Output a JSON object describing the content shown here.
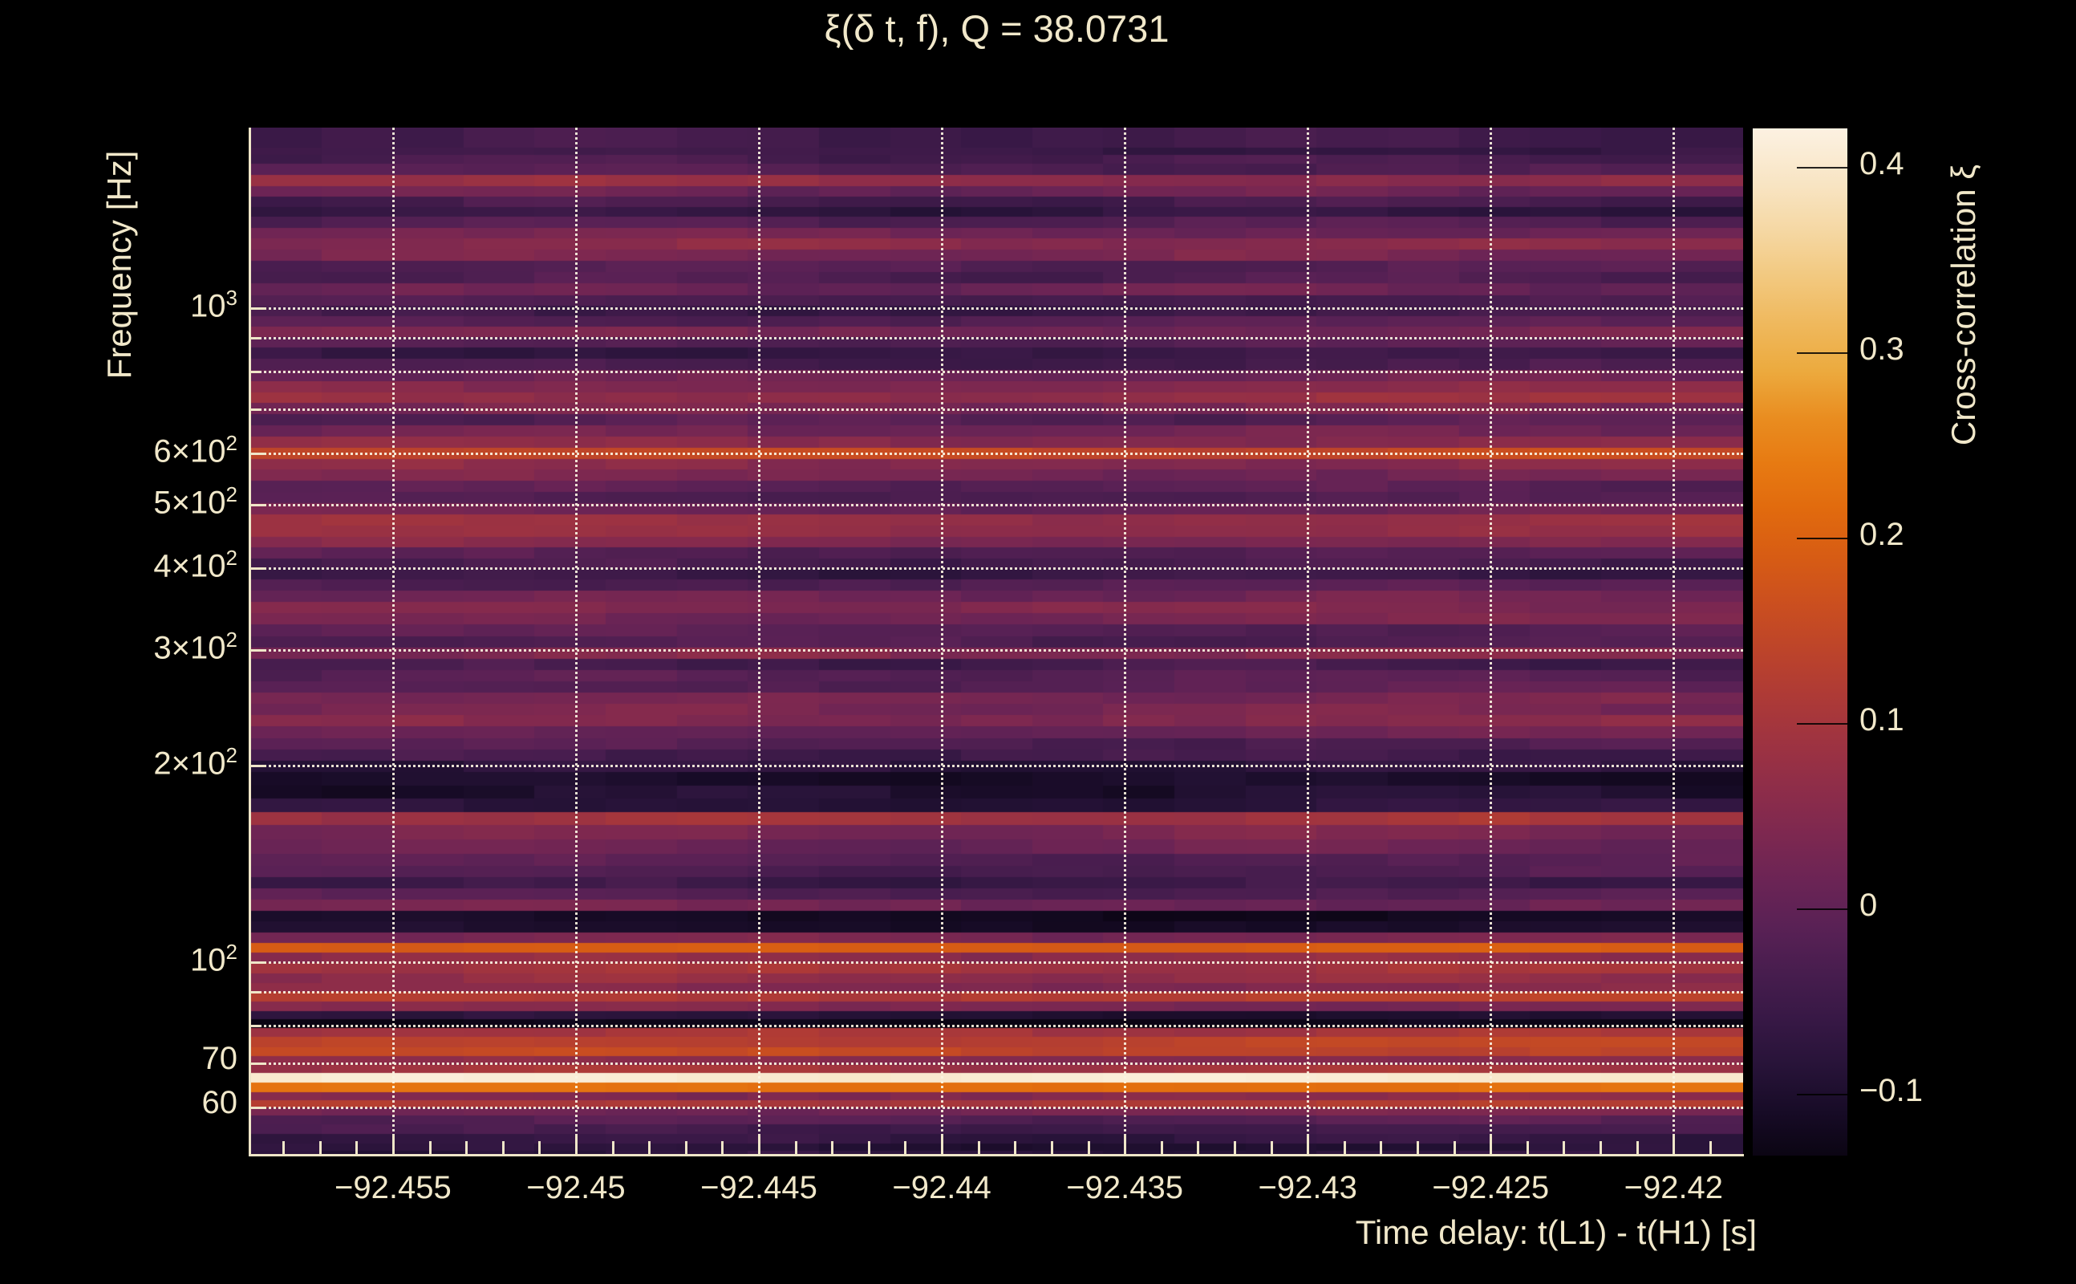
{
  "title": "ξ(δ t, f), Q = 38.0731",
  "colors": {
    "background": "#000000",
    "text": "#f1e8ca",
    "spine": "#efe6c8",
    "grid": "#faf3e1",
    "colorbar_tick": "#000000"
  },
  "chart_data": {
    "type": "heatmap",
    "title": "ξ(δ t, f), Q = 38.0731",
    "xlabel": "Time delay: t(L1) - t(H1) [s]",
    "ylabel": "Frequency [Hz]",
    "colorbar_label": "Cross-correlation ξ",
    "q_value": 38.0731,
    "x_range": [
      -92.4589,
      -92.4181
    ],
    "y_range_hz": [
      50.6,
      1888
    ],
    "y_scale": "log",
    "grid_style": "dotted",
    "x_ticks": {
      "values": [
        -92.455,
        -92.45,
        -92.445,
        -92.44,
        -92.435,
        -92.43,
        -92.425,
        -92.42
      ],
      "labels": [
        "−92.455",
        "−92.45",
        "−92.445",
        "−92.44",
        "−92.435",
        "−92.43",
        "−92.425",
        "−92.42"
      ]
    },
    "x_minor_tick_step": 0.001,
    "y_ticks": {
      "values": [
        1000,
        600,
        500,
        400,
        300,
        200,
        100,
        70,
        60
      ],
      "labels": [
        "10^3",
        "6×10^2",
        "5×10^2",
        "4×10^2",
        "3×10^2",
        "2×10^2",
        "10^2",
        "70",
        "60"
      ]
    },
    "y_gridlines_hz": [
      60,
      70,
      80,
      90,
      100,
      200,
      300,
      400,
      500,
      600,
      700,
      800,
      900,
      1000
    ],
    "colorbar_ticks": {
      "values": [
        0.4,
        0.3,
        0.2,
        0.1,
        0,
        -0.1
      ],
      "labels": [
        "0.4",
        "0.3",
        "0.2",
        "0.1",
        "0",
        "−0.1"
      ]
    },
    "color_range": [
      -0.133,
      0.421
    ],
    "colormap_stops": [
      [
        -0.133,
        "#0b0513"
      ],
      [
        -0.11,
        "#170b26"
      ],
      [
        -0.085,
        "#271338"
      ],
      [
        -0.06,
        "#371845"
      ],
      [
        -0.035,
        "#471d4e"
      ],
      [
        -0.01,
        "#592155"
      ],
      [
        0.015,
        "#6b2455"
      ],
      [
        0.04,
        "#7d2850"
      ],
      [
        0.065,
        "#8e2d49"
      ],
      [
        0.09,
        "#9e3341"
      ],
      [
        0.115,
        "#ae3a36"
      ],
      [
        0.14,
        "#bd442a"
      ],
      [
        0.165,
        "#cb4f1f"
      ],
      [
        0.19,
        "#d75c14"
      ],
      [
        0.215,
        "#e16a0e"
      ],
      [
        0.24,
        "#e77a12"
      ],
      [
        0.265,
        "#e98d20"
      ],
      [
        0.29,
        "#ecaa3e"
      ],
      [
        0.315,
        "#efb85c"
      ],
      [
        0.34,
        "#f2c87e"
      ],
      [
        0.365,
        "#f5d7a2"
      ],
      [
        0.39,
        "#f8e4c2"
      ],
      [
        0.415,
        "#fbefdc"
      ],
      [
        0.421,
        "#fcf1e1"
      ]
    ],
    "time_bins": 21,
    "noise_amplitude": 0.016,
    "rows": [
      [
        51.1,
        -0.075
      ],
      [
        52.3,
        -0.085
      ],
      [
        53.9,
        -0.065
      ],
      [
        55.8,
        -0.04
      ],
      [
        57.7,
        -0.015
      ],
      [
        59.3,
        0.03
      ],
      [
        60.9,
        0.115
      ],
      [
        62.7,
        0.05
      ],
      [
        64.6,
        0.225
      ],
      [
        66.8,
        0.405
      ],
      [
        68.9,
        0.095
      ],
      [
        71.0,
        0.055
      ],
      [
        73.2,
        0.145
      ],
      [
        75.7,
        0.135
      ],
      [
        78.4,
        0.1
      ],
      [
        80.9,
        -0.13
      ],
      [
        83.3,
        -0.09
      ],
      [
        85.9,
        0.04
      ],
      [
        88.9,
        0.125
      ],
      [
        91.9,
        0.05
      ],
      [
        95.1,
        0.07
      ],
      [
        98.4,
        0.095
      ],
      [
        101.8,
        0.065
      ],
      [
        105.6,
        0.19
      ],
      [
        109.4,
        0.035
      ],
      [
        113.4,
        -0.105
      ],
      [
        118.0,
        -0.115
      ],
      [
        122.7,
        0.02
      ],
      [
        127.6,
        -0.02
      ],
      [
        132.7,
        -0.055
      ],
      [
        138.0,
        -0.025
      ],
      [
        143.9,
        -0.012
      ],
      [
        150.9,
        0.012
      ],
      [
        158.5,
        0.035
      ],
      [
        166.3,
        0.095
      ],
      [
        174.4,
        -0.08
      ],
      [
        182.8,
        -0.095
      ],
      [
        191.7,
        -0.105
      ],
      [
        200.2,
        -0.075
      ],
      [
        208.4,
        -0.045
      ],
      [
        216.9,
        -0.02
      ],
      [
        225.8,
        0.01
      ],
      [
        235.0,
        0.05
      ],
      [
        244.5,
        0.035
      ],
      [
        254.5,
        0.03
      ],
      [
        264.8,
        -0.01
      ],
      [
        275.6,
        -0.012
      ],
      [
        286.8,
        -0.04
      ],
      [
        298.5,
        0.045
      ],
      [
        310.7,
        -0.025
      ],
      [
        323.3,
        -0.012
      ],
      [
        336.5,
        0.032
      ],
      [
        350.2,
        0.045
      ],
      [
        364.4,
        0.02
      ],
      [
        379.3,
        -0.02
      ],
      [
        393.5,
        -0.06
      ],
      [
        407.7,
        -0.035
      ],
      [
        423.4,
        -0.015
      ],
      [
        440.2,
        0.045
      ],
      [
        457.8,
        0.075
      ],
      [
        476.0,
        0.08
      ],
      [
        495.0,
        0.015
      ],
      [
        514.8,
        -0.022
      ],
      [
        535.3,
        -0.01
      ],
      [
        556.7,
        0.03
      ],
      [
        578.9,
        0.055
      ],
      [
        602.0,
        0.15
      ],
      [
        626.0,
        0.055
      ],
      [
        651.0,
        0.02
      ],
      [
        677.0,
        -0.015
      ],
      [
        704.0,
        0.032
      ],
      [
        731.9,
        0.075
      ],
      [
        761.2,
        0.048
      ],
      [
        791.6,
        0.015
      ],
      [
        823.2,
        -0.035
      ],
      [
        856.1,
        -0.06
      ],
      [
        890.2,
        -0.012
      ],
      [
        925.7,
        0.03
      ],
      [
        958.8,
        -0.015
      ],
      [
        992.0,
        -0.05
      ],
      [
        1030.7,
        -0.03
      ],
      [
        1072.3,
        0.01
      ],
      [
        1115.6,
        -0.025
      ],
      [
        1160.5,
        -0.018
      ],
      [
        1207.2,
        0.032
      ],
      [
        1255.9,
        0.055
      ],
      [
        1306.5,
        0.02
      ],
      [
        1359.1,
        -0.02
      ],
      [
        1409.8,
        -0.07
      ],
      [
        1458.2,
        -0.035
      ],
      [
        1511.9,
        0.015
      ],
      [
        1575.1,
        0.068
      ],
      [
        1637.8,
        -0.02
      ],
      [
        1695.6,
        -0.035
      ],
      [
        1750.2,
        -0.055
      ],
      [
        1788.0,
        -0.045
      ]
    ]
  }
}
